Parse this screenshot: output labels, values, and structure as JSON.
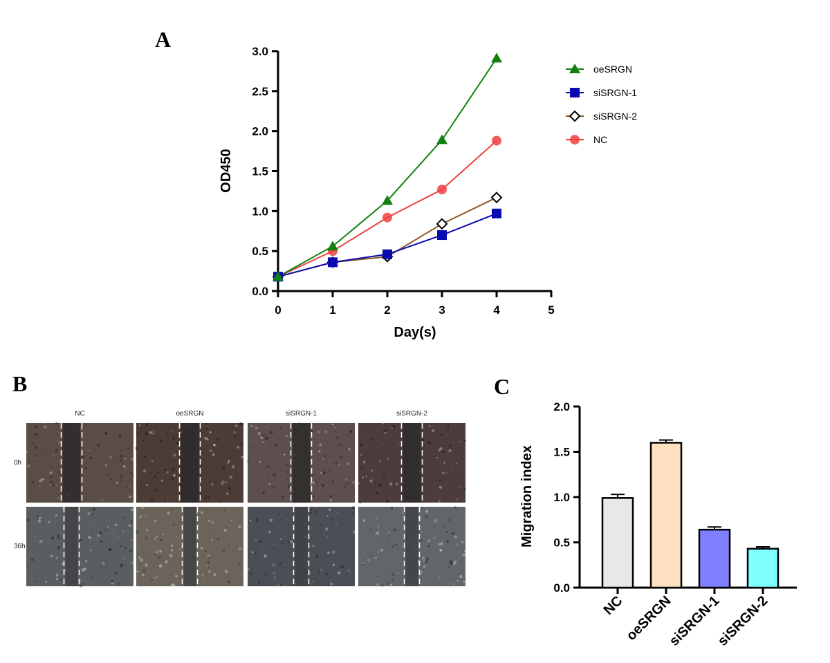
{
  "panels": {
    "a": "A",
    "b": "B",
    "c": "C"
  },
  "micrographs": {
    "columns": [
      "NC",
      "oeSRGN",
      "siSRGN-1",
      "siSRGN-2"
    ],
    "rows": [
      "0h",
      "36h"
    ],
    "row_tones": [
      [
        "#5a4d47",
        "#4b3c36",
        "#5c4f4d",
        "#4c3c3c"
      ],
      [
        "#5a5e60",
        "#6b645a",
        "#4b4f55",
        "#61666a"
      ]
    ]
  },
  "chart_data": [
    {
      "type": "line",
      "title": "",
      "xlabel": "Day(s)",
      "ylabel": "OD450",
      "xlim": [
        0,
        5
      ],
      "ylim": [
        0,
        3.0
      ],
      "xticks": [
        "0",
        "1",
        "2",
        "3",
        "4",
        "5"
      ],
      "yticks": [
        "0.0",
        "0.5",
        "1.0",
        "1.5",
        "2.0",
        "2.5",
        "3.0"
      ],
      "x": [
        0,
        1,
        2,
        3,
        4
      ],
      "legend_position": "right",
      "series": [
        {
          "name": "oeSRGN",
          "values": [
            0.18,
            0.56,
            1.13,
            1.89,
            2.91
          ],
          "color": "#118011",
          "marker": "triangle"
        },
        {
          "name": "siSRGN-1",
          "values": [
            0.18,
            0.36,
            0.46,
            0.7,
            0.97
          ],
          "color": "#0a0ab0",
          "marker": "square"
        },
        {
          "name": "siSRGN-2",
          "values": [
            0.18,
            0.36,
            0.43,
            0.84,
            1.17
          ],
          "color": "#8b5a2b",
          "marker": "diamond"
        },
        {
          "name": "NC",
          "values": [
            0.18,
            0.5,
            0.92,
            1.27,
            1.88
          ],
          "color": "#f04040",
          "marker": "circle"
        }
      ]
    },
    {
      "type": "bar",
      "title": "",
      "xlabel": "",
      "ylabel": "Migration index",
      "ylim": [
        0,
        2.0
      ],
      "yticks": [
        "0.0",
        "0.5",
        "1.0",
        "1.5",
        "2.0"
      ],
      "categories": [
        "NC",
        "oeSRGN",
        "siSRGN-1",
        "siSRGN-2"
      ],
      "values": [
        0.99,
        1.6,
        0.64,
        0.43
      ],
      "errors": [
        0.04,
        0.03,
        0.03,
        0.02
      ],
      "colors": [
        "#e8e8e8",
        "#fde0c0",
        "#7f7fff",
        "#80ffff"
      ]
    }
  ]
}
